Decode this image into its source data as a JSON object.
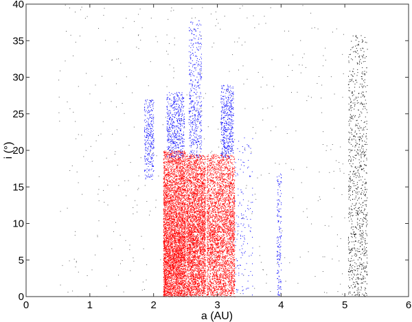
{
  "chart_data": {
    "type": "scatter",
    "title": "",
    "xlabel": "a   (AU)",
    "ylabel": "i (°)",
    "xlim": [
      0,
      6
    ],
    "ylim": [
      0,
      40
    ],
    "xticks": [
      "0",
      "1",
      "2",
      "3",
      "4",
      "5",
      "6"
    ],
    "yticks": [
      "0",
      "5",
      "10",
      "15",
      "20",
      "25",
      "30",
      "35",
      "40"
    ],
    "grid": false,
    "legend": "none",
    "populations": [
      {
        "color": "#ff0000",
        "count": 5000,
        "a": [
          2.15,
          2.5
        ],
        "i": [
          0,
          20
        ],
        "i_peak": 5
      },
      {
        "color": "#ff0000",
        "count": 4200,
        "a": [
          2.51,
          2.81
        ],
        "i": [
          0,
          19.5
        ],
        "i_peak": 8
      },
      {
        "color": "#ff0000",
        "count": 4200,
        "a": [
          2.83,
          3.27
        ],
        "i": [
          0,
          19.5
        ],
        "i_peak": 8
      },
      {
        "color": "#0000ff",
        "count": 300,
        "a": [
          1.85,
          2.0
        ],
        "i": [
          16,
          27
        ],
        "i_peak": 22
      },
      {
        "color": "#0000ff",
        "count": 500,
        "a": [
          2.2,
          2.48
        ],
        "i": [
          19,
          28
        ],
        "i_peak": 23.5
      },
      {
        "color": "#0000ff",
        "count": 450,
        "a": [
          2.55,
          2.75
        ],
        "i": [
          19,
          38
        ],
        "i_peak": 23
      },
      {
        "color": "#0000ff",
        "count": 450,
        "a": [
          3.05,
          3.25
        ],
        "i": [
          19,
          29
        ],
        "i_peak": 23
      },
      {
        "color": "#0000ff",
        "count": 150,
        "a": [
          3.27,
          3.55
        ],
        "i": [
          0,
          22
        ],
        "i_peak": 8
      },
      {
        "color": "#0000ff",
        "count": 160,
        "a": [
          3.93,
          4.0
        ],
        "i": [
          0,
          17
        ],
        "i_peak": 6
      },
      {
        "color": "#000000",
        "count": 900,
        "a": [
          5.05,
          5.35
        ],
        "i": [
          0,
          36
        ],
        "i_peak": 10
      },
      {
        "color": "#555555",
        "count": 450,
        "a": [
          0.5,
          5.0
        ],
        "i": [
          0,
          40
        ],
        "i_peak": null
      }
    ]
  }
}
